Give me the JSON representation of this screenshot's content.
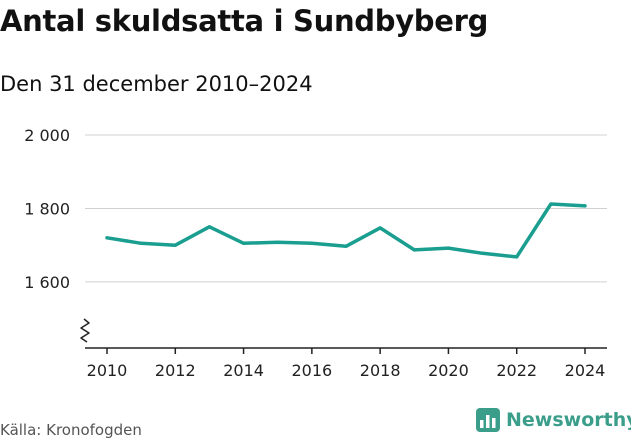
{
  "header": {
    "title": "Antal skuldsatta i Sundbyberg",
    "subtitle": "Den 31 december 2010–2024"
  },
  "footer": {
    "source": "Källa: Kronofogden",
    "brand": "Newsworthy",
    "brand_icon": "newsworthy-logo-icon"
  },
  "colors": {
    "line": "#1a9e8f",
    "grid": "#d0d0d0",
    "axis": "#222222",
    "brand": "#3b9e8a"
  },
  "chart_data": {
    "type": "line",
    "title": "Antal skuldsatta i Sundbyberg",
    "subtitle": "Den 31 december 2010–2024",
    "xlabel": "",
    "ylabel": "",
    "x": [
      2010,
      2011,
      2012,
      2013,
      2014,
      2015,
      2016,
      2017,
      2018,
      2019,
      2020,
      2021,
      2022,
      2023,
      2024
    ],
    "series": [
      {
        "name": "Antal skuldsatta",
        "values": [
          1720,
          1705,
          1700,
          1750,
          1705,
          1708,
          1705,
          1697,
          1747,
          1687,
          1692,
          1678,
          1668,
          1812,
          1807
        ]
      }
    ],
    "ylim": [
      1420,
      2000
    ],
    "yticks": [
      1600,
      1800,
      2000
    ],
    "ytick_labels": [
      "1 600",
      "1 800",
      "2 000"
    ],
    "xticks": [
      2010,
      2012,
      2014,
      2016,
      2018,
      2020,
      2022,
      2024
    ],
    "xtick_labels": [
      "2010",
      "2012",
      "2014",
      "2016",
      "2018",
      "2020",
      "2022",
      "2024"
    ],
    "axis_break": true,
    "grid": true
  }
}
